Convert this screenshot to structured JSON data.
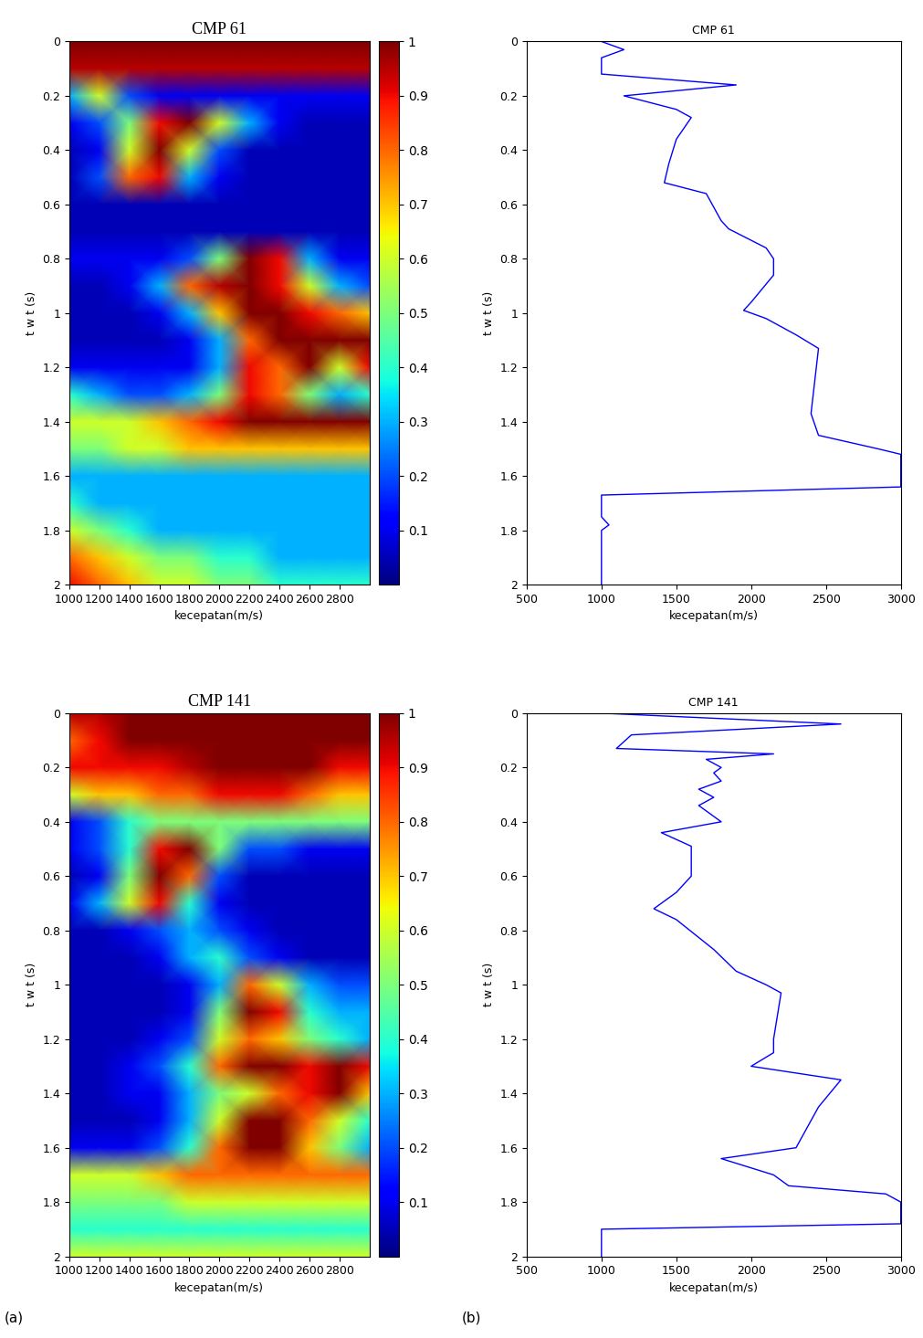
{
  "chart_data": [
    {
      "type": "heatmap",
      "title": "CMP 61",
      "x_label": "kecepatan(m/s)",
      "y_label": "t w t (s)",
      "x": [
        1000,
        1200,
        1400,
        1600,
        1800,
        2000,
        2200,
        2400,
        2600,
        2800,
        3000
      ],
      "y": [
        0,
        0.1,
        0.2,
        0.3,
        0.4,
        0.5,
        0.6,
        0.7,
        0.8,
        0.9,
        1.0,
        1.1,
        1.2,
        1.3,
        1.4,
        1.5,
        1.6,
        1.7,
        1.8,
        1.9,
        2.0
      ],
      "cells": [
        [
          1,
          1,
          1,
          1,
          1,
          1,
          1,
          1,
          1,
          1,
          1
        ],
        [
          0.95,
          0.95,
          0.95,
          0.95,
          0.95,
          0.95,
          0.95,
          0.95,
          0.95,
          0.95,
          0.95
        ],
        [
          0.3,
          0.6,
          0.2,
          0.1,
          0.1,
          0.1,
          0.1,
          0.1,
          0.1,
          0.1,
          0.1
        ],
        [
          0.1,
          0.2,
          0.5,
          0.9,
          1,
          0.6,
          0.3,
          0.1,
          0.05,
          0.05,
          0.05
        ],
        [
          0.05,
          0.1,
          0.6,
          1,
          0.6,
          0.2,
          0.05,
          0.05,
          0.05,
          0.05,
          0.05
        ],
        [
          0.05,
          0.2,
          0.8,
          0.9,
          0.3,
          0.1,
          0.05,
          0.05,
          0.05,
          0.05,
          0.05
        ],
        [
          0.05,
          0.05,
          0.05,
          0.05,
          0.05,
          0.05,
          0.05,
          0.05,
          0.05,
          0.05,
          0.05
        ],
        [
          0.05,
          0.05,
          0.05,
          0.05,
          0.05,
          0.05,
          0.05,
          0.05,
          0.05,
          0.05,
          0.05
        ],
        [
          0.1,
          0.1,
          0.1,
          0.1,
          0.2,
          0.5,
          1,
          0.9,
          0.3,
          0.1,
          0.1
        ],
        [
          0.05,
          0.05,
          0.1,
          0.3,
          0.8,
          0.95,
          1,
          0.9,
          0.6,
          0.3,
          0.2
        ],
        [
          0.05,
          0.05,
          0.05,
          0.1,
          0.3,
          0.7,
          1,
          1,
          0.9,
          0.8,
          0.7
        ],
        [
          0.05,
          0.05,
          0.05,
          0.05,
          0.1,
          0.3,
          0.8,
          1,
          1,
          1,
          1
        ],
        [
          0.1,
          0.1,
          0.1,
          0.1,
          0.1,
          0.3,
          0.9,
          0.8,
          1,
          0.6,
          0.9
        ],
        [
          0.4,
          0.3,
          0.2,
          0.2,
          0.3,
          0.5,
          0.9,
          0.8,
          0.5,
          0.3,
          0.4
        ],
        [
          0.6,
          0.6,
          0.6,
          0.7,
          0.8,
          0.9,
          1,
          1,
          1,
          1,
          1
        ],
        [
          0.5,
          0.5,
          0.6,
          0.6,
          0.7,
          0.7,
          0.7,
          0.7,
          0.7,
          0.7,
          0.7
        ],
        [
          0.3,
          0.3,
          0.3,
          0.3,
          0.3,
          0.3,
          0.3,
          0.3,
          0.3,
          0.3,
          0.3
        ],
        [
          0.4,
          0.3,
          0.3,
          0.3,
          0.3,
          0.3,
          0.3,
          0.3,
          0.3,
          0.3,
          0.3
        ],
        [
          0.6,
          0.5,
          0.4,
          0.3,
          0.3,
          0.3,
          0.3,
          0.3,
          0.3,
          0.3,
          0.3
        ],
        [
          0.8,
          0.7,
          0.6,
          0.5,
          0.5,
          0.4,
          0.4,
          0.3,
          0.3,
          0.3,
          0.3
        ],
        [
          0.9,
          0.8,
          0.7,
          0.6,
          0.6,
          0.5,
          0.5,
          0.4,
          0.4,
          0.4,
          0.4
        ]
      ],
      "xlim": [
        1000,
        3000
      ],
      "xticks": [
        1000,
        1200,
        1400,
        1600,
        1800,
        2000,
        2200,
        2400,
        2600,
        2800
      ],
      "ylim": [
        2,
        0
      ],
      "yticks": [
        0,
        0.2,
        0.4,
        0.6,
        0.8,
        1,
        1.2,
        1.4,
        1.6,
        1.8,
        2
      ],
      "colorbar_range": [
        0,
        1
      ],
      "colorbar_ticks": [
        0.1,
        0.2,
        0.3,
        0.4,
        0.5,
        0.6,
        0.7,
        0.8,
        0.9,
        1
      ]
    },
    {
      "type": "line",
      "title": "CMP 61",
      "x_label": "kecepatan(m/s)",
      "y_label": "t w t (s)",
      "color": "#0000ff",
      "x": [
        1000,
        1150,
        1000,
        1000,
        1900,
        1150,
        1500,
        1600,
        1500,
        1450,
        1420,
        1700,
        1800,
        1850,
        2100,
        2150,
        2150,
        2000,
        1950,
        2100,
        2300,
        2450,
        2400,
        2450,
        2850,
        3000,
        3000,
        1000,
        1000,
        1050,
        1000,
        1000
      ],
      "y": [
        0,
        0.03,
        0.06,
        0.12,
        0.16,
        0.2,
        0.25,
        0.28,
        0.36,
        0.45,
        0.52,
        0.56,
        0.66,
        0.69,
        0.76,
        0.8,
        0.86,
        0.96,
        0.99,
        1.02,
        1.08,
        1.13,
        1.37,
        1.45,
        1.5,
        1.52,
        1.64,
        1.67,
        1.75,
        1.78,
        1.8,
        2.0
      ],
      "xlim": [
        500,
        3000
      ],
      "xticks": [
        500,
        1000,
        1500,
        2000,
        2500,
        3000
      ],
      "ylim": [
        2,
        0
      ],
      "yticks": [
        0,
        0.2,
        0.4,
        0.6,
        0.8,
        1,
        1.2,
        1.4,
        1.6,
        1.8,
        2
      ]
    },
    {
      "type": "heatmap",
      "title": "CMP 141",
      "x_label": "kecepatan(m/s)",
      "y_label": "t w t (s)",
      "x": [
        1000,
        1200,
        1400,
        1600,
        1800,
        2000,
        2200,
        2400,
        2600,
        2800,
        3000
      ],
      "y": [
        0,
        0.1,
        0.2,
        0.3,
        0.4,
        0.5,
        0.6,
        0.7,
        0.8,
        0.9,
        1.0,
        1.1,
        1.2,
        1.3,
        1.4,
        1.5,
        1.6,
        1.7,
        1.8,
        1.9,
        2.0
      ],
      "cells": [
        [
          0.95,
          0.95,
          1,
          1,
          1,
          1,
          1,
          1,
          1,
          1,
          1
        ],
        [
          0.8,
          0.9,
          1,
          1,
          1,
          1,
          1,
          1,
          1,
          1,
          1
        ],
        [
          0.9,
          0.9,
          0.9,
          0.9,
          0.95,
          1,
          1,
          1,
          1,
          0.9,
          0.9
        ],
        [
          0.6,
          0.7,
          0.7,
          0.8,
          0.8,
          0.9,
          0.9,
          0.9,
          0.8,
          0.7,
          0.7
        ],
        [
          0.1,
          0.2,
          0.4,
          0.5,
          0.5,
          0.5,
          0.5,
          0.5,
          0.5,
          0.5,
          0.5
        ],
        [
          0.1,
          0.2,
          0.4,
          0.9,
          1,
          0.5,
          0.2,
          0.2,
          0.1,
          0.1,
          0.1
        ],
        [
          0.05,
          0.1,
          0.5,
          1,
          0.8,
          0.2,
          0.05,
          0.05,
          0.05,
          0.05,
          0.05
        ],
        [
          0.1,
          0.3,
          0.6,
          0.9,
          0.4,
          0.1,
          0.05,
          0.05,
          0.05,
          0.05,
          0.05
        ],
        [
          0.05,
          0.05,
          0.1,
          0.2,
          0.3,
          0.2,
          0.1,
          0.05,
          0.05,
          0.05,
          0.05
        ],
        [
          0.05,
          0.05,
          0.05,
          0.1,
          0.3,
          0.4,
          0.2,
          0.1,
          0.05,
          0.05,
          0.05
        ],
        [
          0.05,
          0.05,
          0.05,
          0.05,
          0.1,
          0.3,
          0.8,
          0.6,
          0.3,
          0.2,
          0.2
        ],
        [
          0.05,
          0.05,
          0.05,
          0.05,
          0.1,
          0.5,
          1,
          0.9,
          0.4,
          0.3,
          0.3
        ],
        [
          0.05,
          0.05,
          0.05,
          0.1,
          0.2,
          0.6,
          0.8,
          0.7,
          0.5,
          0.4,
          0.3
        ],
        [
          0.05,
          0.05,
          0.1,
          0.2,
          0.4,
          0.8,
          1,
          1,
          0.9,
          1,
          0.9
        ],
        [
          0.05,
          0.05,
          0.1,
          0.1,
          0.3,
          0.5,
          0.6,
          0.8,
          0.9,
          1,
          0.7
        ],
        [
          0.05,
          0.05,
          0.05,
          0.1,
          0.3,
          0.6,
          1,
          1,
          0.8,
          0.6,
          0.4
        ],
        [
          0.1,
          0.1,
          0.1,
          0.2,
          0.4,
          0.8,
          1,
          1,
          0.7,
          0.5,
          0.3
        ],
        [
          0.6,
          0.6,
          0.6,
          0.7,
          0.8,
          0.8,
          0.8,
          0.8,
          0.8,
          0.8,
          0.8
        ],
        [
          0.5,
          0.5,
          0.5,
          0.5,
          0.6,
          0.6,
          0.6,
          0.6,
          0.6,
          0.6,
          0.6
        ],
        [
          0.4,
          0.4,
          0.4,
          0.4,
          0.4,
          0.4,
          0.4,
          0.4,
          0.4,
          0.4,
          0.4
        ],
        [
          0.6,
          0.6,
          0.6,
          0.6,
          0.6,
          0.6,
          0.6,
          0.6,
          0.6,
          0.6,
          0.6
        ]
      ],
      "xlim": [
        1000,
        3000
      ],
      "xticks": [
        1000,
        1200,
        1400,
        1600,
        1800,
        2000,
        2200,
        2400,
        2600,
        2800
      ],
      "ylim": [
        2,
        0
      ],
      "yticks": [
        0,
        0.2,
        0.4,
        0.6,
        0.8,
        1,
        1.2,
        1.4,
        1.6,
        1.8,
        2
      ],
      "colorbar_range": [
        0,
        1
      ],
      "colorbar_ticks": [
        0.1,
        0.2,
        0.3,
        0.4,
        0.5,
        0.6,
        0.7,
        0.8,
        0.9,
        1
      ]
    },
    {
      "type": "line",
      "title": "CMP 141",
      "x_label": "kecepatan(m/s)",
      "y_label": "t w t (s)",
      "color": "#0000ff",
      "x": [
        1000,
        2600,
        1200,
        1100,
        2150,
        1700,
        1800,
        1750,
        1800,
        1650,
        1750,
        1650,
        1700,
        1800,
        1400,
        1600,
        1600,
        1500,
        1350,
        1500,
        1750,
        1900,
        2100,
        2200,
        2150,
        2150,
        2000,
        2600,
        2450,
        2300,
        1800,
        2150,
        2250,
        2900,
        3000,
        3000,
        1000,
        1000
      ],
      "y": [
        0,
        0.04,
        0.08,
        0.13,
        0.15,
        0.17,
        0.2,
        0.22,
        0.25,
        0.28,
        0.31,
        0.34,
        0.36,
        0.4,
        0.44,
        0.49,
        0.6,
        0.66,
        0.72,
        0.76,
        0.87,
        0.95,
        1.0,
        1.03,
        1.2,
        1.25,
        1.3,
        1.35,
        1.45,
        1.6,
        1.64,
        1.7,
        1.74,
        1.77,
        1.8,
        1.88,
        1.9,
        2.0
      ],
      "xlim": [
        500,
        3000
      ],
      "xticks": [
        500,
        1000,
        1500,
        2000,
        2500,
        3000
      ],
      "ylim": [
        2,
        0
      ],
      "yticks": [
        0,
        0.2,
        0.4,
        0.6,
        0.8,
        1,
        1.2,
        1.4,
        1.6,
        1.8,
        2
      ]
    }
  ],
  "panel_labels": [
    "(a)",
    "(b)"
  ]
}
